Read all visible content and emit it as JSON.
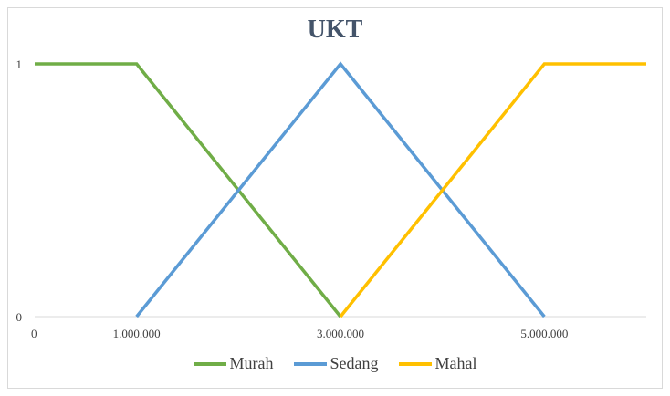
{
  "chart_data": {
    "type": "line",
    "title": "UKT",
    "xlabel": "",
    "ylabel": "",
    "xlim": [
      0,
      6000000
    ],
    "ylim": [
      0,
      1
    ],
    "x_ticks": [
      {
        "value": 0,
        "label": "0"
      },
      {
        "value": 1000000,
        "label": "1.000.000"
      },
      {
        "value": 3000000,
        "label": "3.000.000"
      },
      {
        "value": 5000000,
        "label": "5.000.000"
      }
    ],
    "y_ticks": [
      {
        "value": 0,
        "label": "0"
      },
      {
        "value": 1,
        "label": "1"
      }
    ],
    "grid": false,
    "legend_position": "bottom",
    "series": [
      {
        "name": "Murah",
        "color": "#70ad47",
        "points": [
          [
            0,
            1
          ],
          [
            1000000,
            1
          ],
          [
            3000000,
            0
          ]
        ]
      },
      {
        "name": "Sedang",
        "color": "#5b9bd5",
        "points": [
          [
            1000000,
            0
          ],
          [
            3000000,
            1
          ],
          [
            5000000,
            0
          ]
        ]
      },
      {
        "name": "Mahal",
        "color": "#ffc000",
        "points": [
          [
            3000000,
            0
          ],
          [
            5000000,
            1
          ],
          [
            6000000,
            1
          ]
        ]
      }
    ]
  }
}
